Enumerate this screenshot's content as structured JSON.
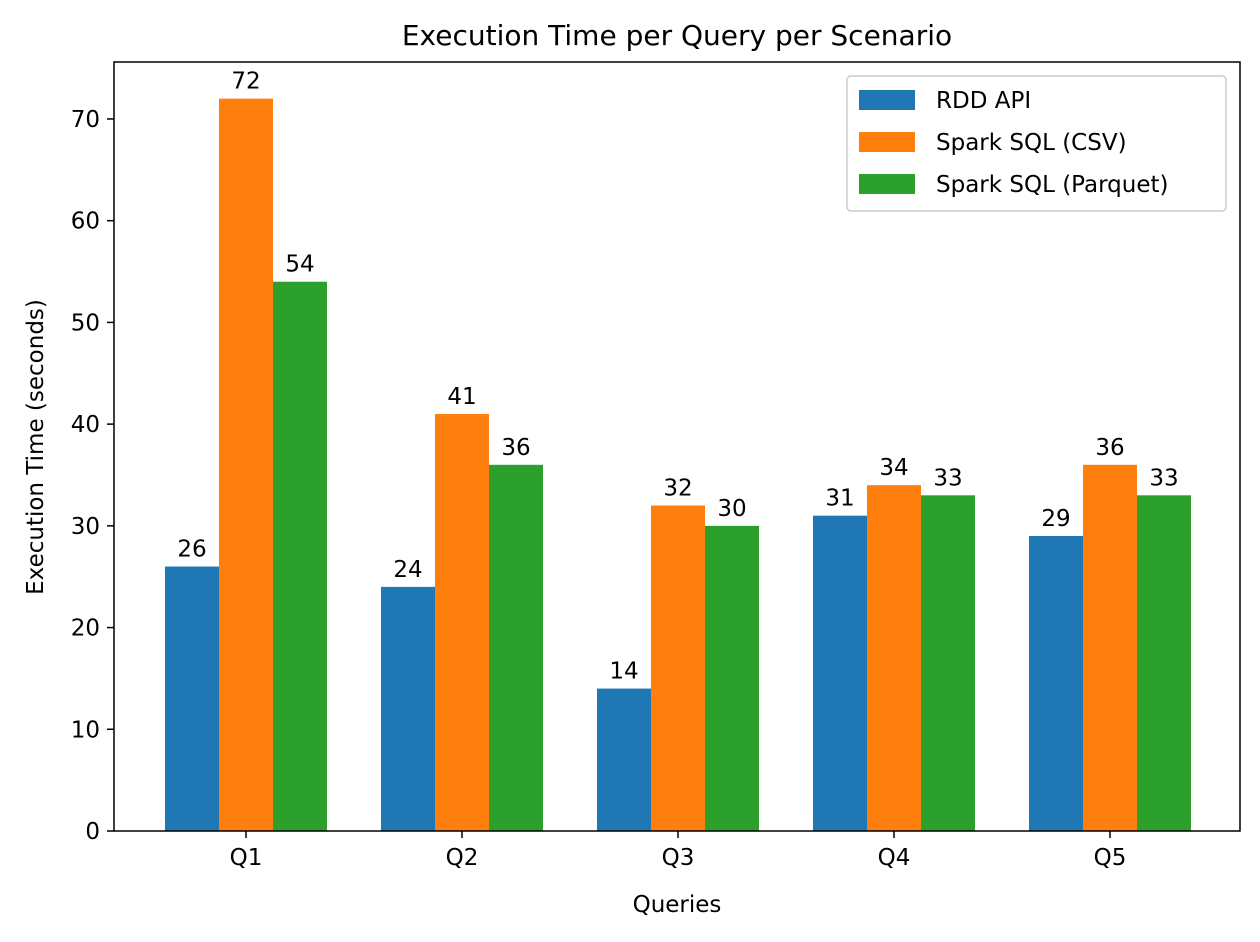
{
  "chart_data": {
    "type": "bar",
    "title": "Execution Time per Query per Scenario",
    "xlabel": "Queries",
    "ylabel": "Execution Time (seconds)",
    "categories": [
      "Q1",
      "Q2",
      "Q3",
      "Q4",
      "Q5"
    ],
    "series": [
      {
        "name": "RDD API",
        "color": "#1f77b4",
        "values": [
          26,
          24,
          14,
          31,
          29
        ]
      },
      {
        "name": "Spark SQL (CSV)",
        "color": "#ff7f0e",
        "values": [
          72,
          41,
          32,
          34,
          36
        ]
      },
      {
        "name": "Spark SQL (Parquet)",
        "color": "#2ca02c",
        "values": [
          54,
          36,
          30,
          33,
          33
        ]
      }
    ],
    "ylim": [
      0,
      75.6
    ],
    "yticks": [
      0,
      10,
      20,
      30,
      40,
      50,
      60,
      70
    ],
    "grid": false,
    "legend_position": "top-right",
    "data_labels": true
  }
}
